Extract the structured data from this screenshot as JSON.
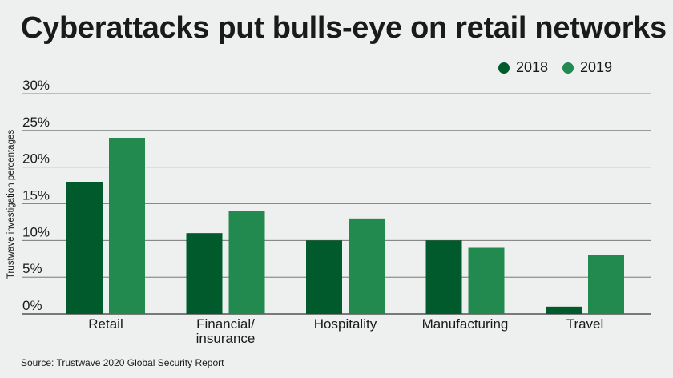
{
  "chart_data": {
    "type": "bar",
    "title": "Cyberattacks put bulls-eye on retail networks",
    "ylabel": "Trustwave investigation percentages",
    "xlabel": "",
    "source": "Source: Trustwave 2020 Global Security Report",
    "categories": [
      "Retail",
      "Financial/\ninsurance",
      "Hospitality",
      "Manufacturing",
      "Travel"
    ],
    "series": [
      {
        "name": "2018",
        "color": "#005a2b",
        "values": [
          18,
          11,
          10,
          10,
          1
        ]
      },
      {
        "name": "2019",
        "color": "#228a4f",
        "values": [
          24,
          14,
          13,
          9,
          8
        ]
      }
    ],
    "ylim": [
      0,
      30
    ],
    "yticks": [
      0,
      5,
      10,
      15,
      20,
      25,
      30
    ],
    "ytick_labels": [
      "0%",
      "5%",
      "10%",
      "15%",
      "20%",
      "25%",
      "30%"
    ],
    "grid": true,
    "legend_position": "top-right"
  }
}
